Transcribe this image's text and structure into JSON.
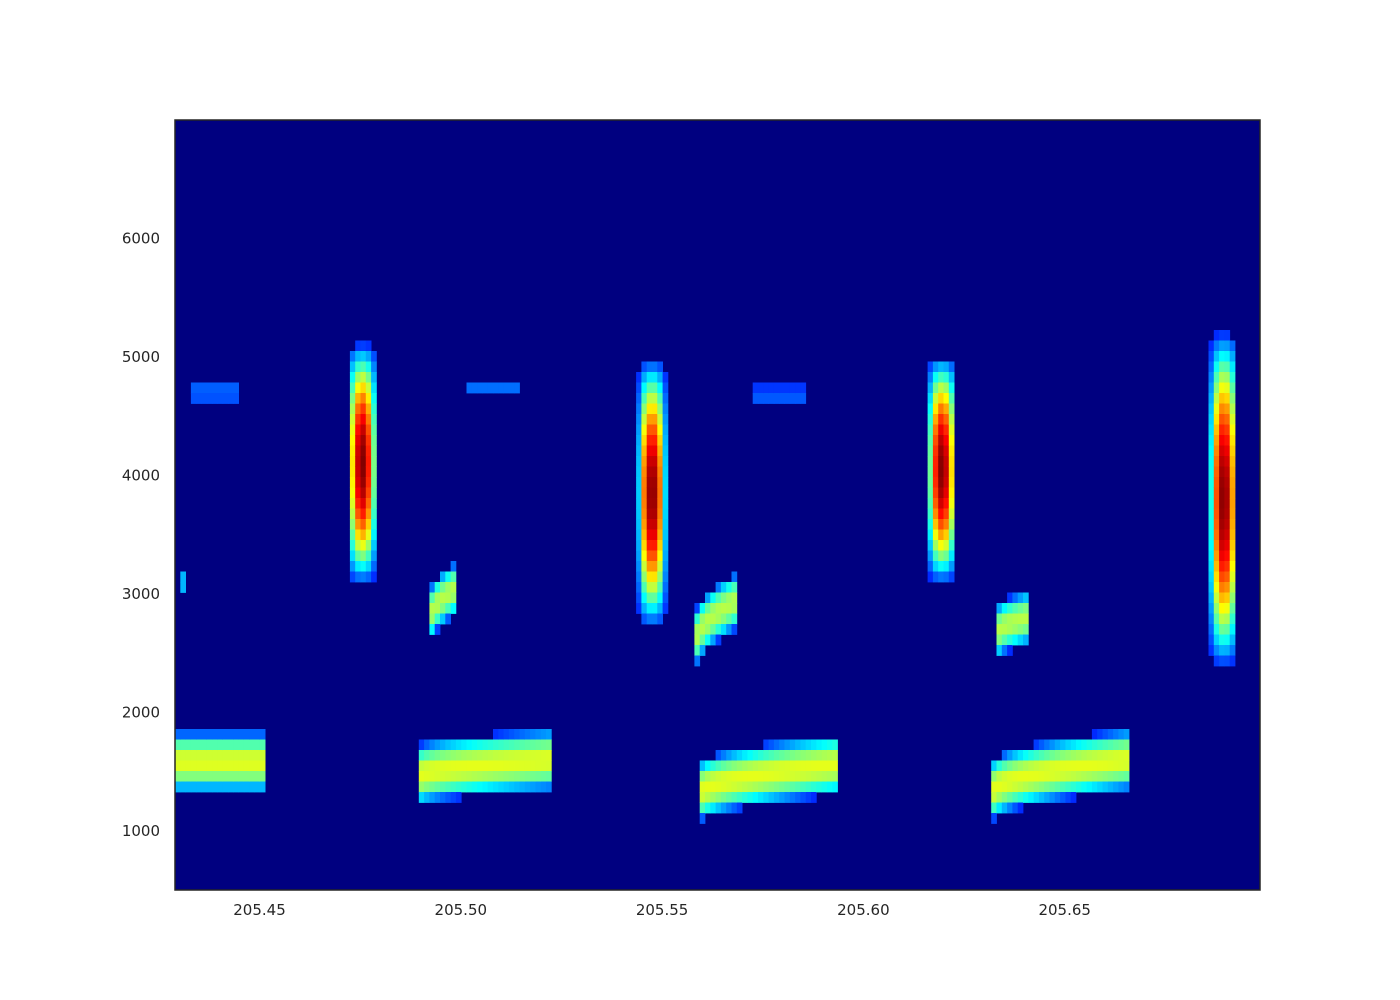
{
  "chart_data": {
    "type": "heatmap",
    "title": "",
    "xlabel": "",
    "ylabel": "",
    "colormap": "jet",
    "background_color": "#000080",
    "xlim": [
      205.429,
      205.6985
    ],
    "ylim": [
      500,
      7000
    ],
    "x_ticks": [
      {
        "value": 205.45,
        "label": "205.45"
      },
      {
        "value": 205.5,
        "label": "205.50"
      },
      {
        "value": 205.55,
        "label": "205.55"
      },
      {
        "value": 205.6,
        "label": "205.60"
      },
      {
        "value": 205.65,
        "label": "205.65"
      }
    ],
    "y_ticks": [
      {
        "value": 1000,
        "label": "1000"
      },
      {
        "value": 2000,
        "label": "2000"
      },
      {
        "value": 3000,
        "label": "3000"
      },
      {
        "value": 4000,
        "label": "4000"
      },
      {
        "value": 5000,
        "label": "5000"
      },
      {
        "value": 6000,
        "label": "6000"
      }
    ],
    "grid": false,
    "features": [
      {
        "kind": "tonal-band",
        "x": [
          205.429,
          205.451
        ],
        "y_start": 1580,
        "y_end": 1580,
        "halfwidth": 180,
        "peak": 0.55
      },
      {
        "kind": "tonal-band",
        "x": [
          205.489,
          205.523
        ],
        "y_start": 1450,
        "y_end": 1600,
        "halfwidth": 180,
        "peak": 0.55
      },
      {
        "kind": "tonal-band",
        "x": [
          205.559,
          205.594
        ],
        "y_start": 1300,
        "y_end": 1560,
        "halfwidth": 180,
        "peak": 0.55
      },
      {
        "kind": "tonal-band",
        "x": [
          205.632,
          205.666
        ],
        "y_start": 1320,
        "y_end": 1600,
        "halfwidth": 180,
        "peak": 0.55
      },
      {
        "kind": "tonal-band",
        "x": [
          205.492,
          205.499
        ],
        "y_start": 2750,
        "y_end": 3050,
        "halfwidth": 160,
        "peak": 0.5
      },
      {
        "kind": "tonal-band",
        "x": [
          205.558,
          205.569
        ],
        "y_start": 2550,
        "y_end": 2950,
        "halfwidth": 170,
        "peak": 0.5
      },
      {
        "kind": "tonal-band",
        "x": [
          205.633,
          205.641
        ],
        "y_start": 2650,
        "y_end": 2800,
        "halfwidth": 160,
        "peak": 0.5
      },
      {
        "kind": "click",
        "x": 205.4755,
        "y_center": 4100,
        "y_half": 900,
        "width": 0.0045,
        "peak": 1.0
      },
      {
        "kind": "click",
        "x": 205.5475,
        "y_center": 3850,
        "y_half": 1000,
        "width": 0.0045,
        "peak": 1.0
      },
      {
        "kind": "click",
        "x": 205.6195,
        "y_center": 4050,
        "y_half": 850,
        "width": 0.0045,
        "peak": 1.0
      },
      {
        "kind": "click",
        "x": 205.6895,
        "y_center": 3800,
        "y_half": 1250,
        "width": 0.0045,
        "peak": 1.0
      },
      {
        "kind": "faint",
        "x": [
          205.433,
          205.445
        ],
        "y": 4700,
        "halfwidth": 60,
        "peak": 0.18
      },
      {
        "kind": "faint",
        "x": [
          205.502,
          205.515
        ],
        "y": 4750,
        "halfwidth": 60,
        "peak": 0.15
      },
      {
        "kind": "faint",
        "x": [
          205.573,
          205.586
        ],
        "y": 4680,
        "halfwidth": 60,
        "peak": 0.15
      },
      {
        "kind": "faint",
        "x": [
          205.43,
          205.432
        ],
        "y": 3100,
        "halfwidth": 80,
        "peak": 0.3
      }
    ]
  }
}
